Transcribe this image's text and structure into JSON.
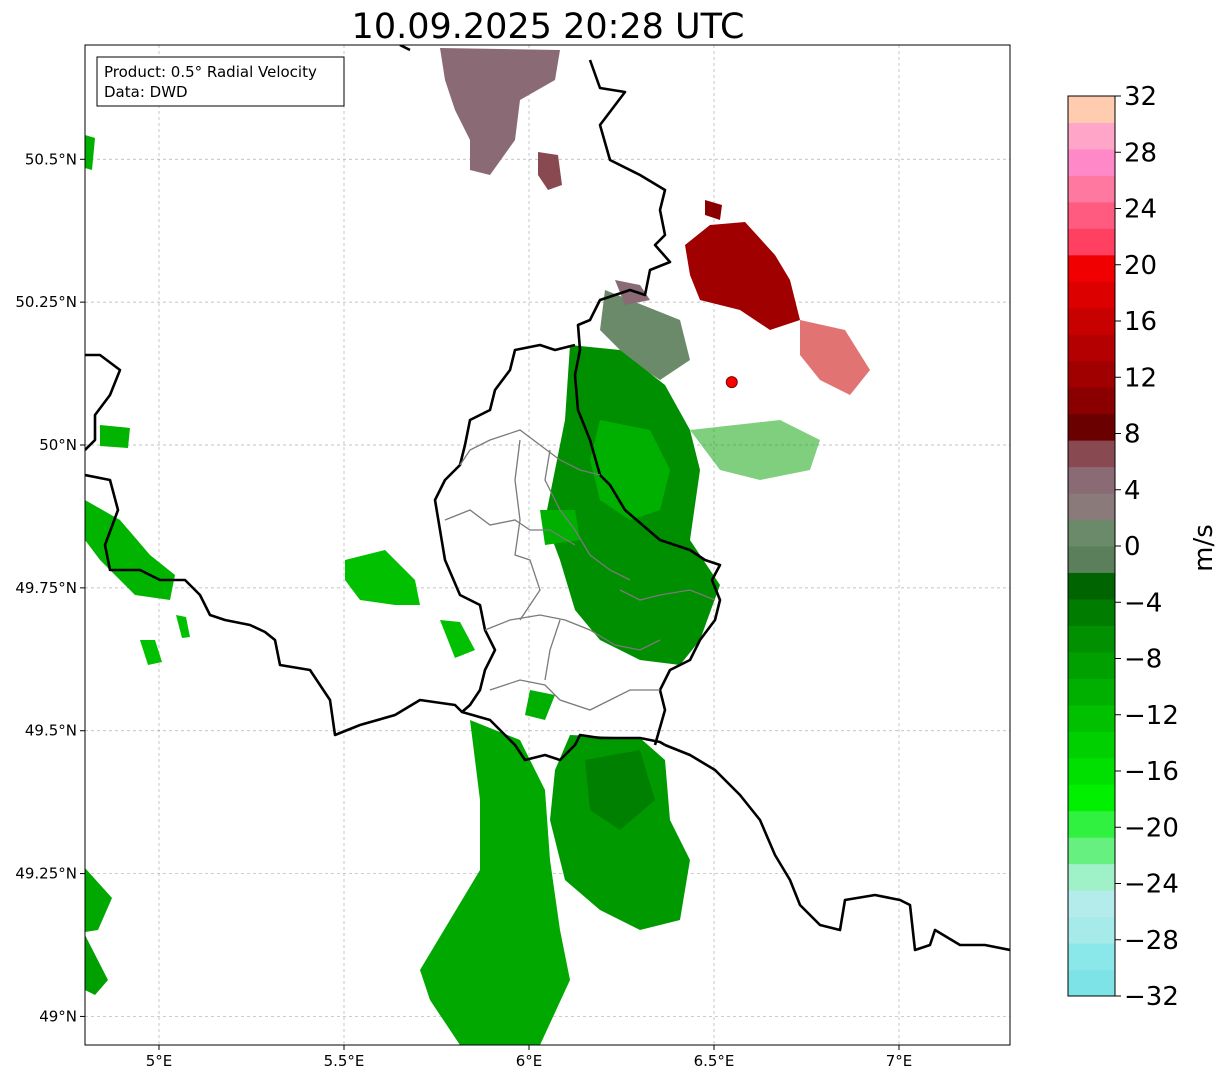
{
  "title": "10.09.2025 20:28 UTC",
  "info_box": {
    "line1": "Product: 0.5° Radial Velocity",
    "line2": "Data: DWD"
  },
  "map": {
    "lon_range": [
      4.8,
      7.3
    ],
    "lat_range": [
      48.95,
      50.7
    ],
    "x_ticks": [
      {
        "value": 5.0,
        "label": "5°E"
      },
      {
        "value": 5.5,
        "label": "5.5°E"
      },
      {
        "value": 6.0,
        "label": "6°E"
      },
      {
        "value": 6.5,
        "label": "6.5°E"
      },
      {
        "value": 7.0,
        "label": "7°E"
      }
    ],
    "y_ticks": [
      {
        "value": 50.5,
        "label": "50.5°N"
      },
      {
        "value": 50.25,
        "label": "50.25°N"
      },
      {
        "value": 50.0,
        "label": "50°N"
      },
      {
        "value": 49.75,
        "label": "49.75°N"
      },
      {
        "value": 49.5,
        "label": "49.5°N"
      },
      {
        "value": 49.25,
        "label": "49.25°N"
      },
      {
        "value": 49.0,
        "label": "49°N"
      }
    ],
    "radar_site": {
      "lon": 6.548,
      "lat": 50.11,
      "color": "#ff0000"
    },
    "grid": true
  },
  "colorbar": {
    "label": "m/s",
    "min": -32,
    "max": 32,
    "ticks": [
      32,
      28,
      24,
      20,
      16,
      12,
      8,
      4,
      0,
      -4,
      -8,
      -12,
      -16,
      -20,
      -24,
      -28,
      -32
    ],
    "tick_labels": [
      "32",
      "28",
      "24",
      "20",
      "16",
      "12",
      "8",
      "4",
      "0",
      "−4",
      "−8",
      "−12",
      "−16",
      "−20",
      "−24",
      "−28",
      "−32"
    ],
    "colors_bottom_to_top": [
      "#7de3e6",
      "#8ae8ea",
      "#a6eaea",
      "#b4ecec",
      "#a0f0c8",
      "#66f080",
      "#30f040",
      "#00f000",
      "#00e000",
      "#00d000",
      "#00c000",
      "#00b000",
      "#00a000",
      "#009000",
      "#007c00",
      "#006400",
      "#5b7e5b",
      "#6a8a6a",
      "#8a7a7a",
      "#8a6a74",
      "#884a50",
      "#6a0000",
      "#8a0000",
      "#a00000",
      "#b40000",
      "#c80000",
      "#dc0000",
      "#f00000",
      "#ff4060",
      "#ff5a80",
      "#ff78a0",
      "#ff88c8",
      "#ffa6c8",
      "#ffccb0"
    ]
  },
  "chart_data": {
    "type": "heatmap",
    "title": "10.09.2025 20:28 UTC",
    "xlabel": "",
    "ylabel": "",
    "value_label": "m/s",
    "value_range": [
      -32,
      32
    ],
    "regions": [
      {
        "lon": [
          5.83,
          6.05
        ],
        "lat": [
          50.45,
          50.7
        ],
        "velocity": 2
      },
      {
        "lon": [
          6.02,
          6.1
        ],
        "lat": [
          50.45,
          50.52
        ],
        "velocity": 6
      },
      {
        "lon": [
          6.4,
          6.75
        ],
        "lat": [
          50.2,
          50.4
        ],
        "velocity": 12
      },
      {
        "lon": [
          6.1,
          6.45
        ],
        "lat": [
          49.85,
          50.2
        ],
        "velocity": -10
      },
      {
        "lon": [
          6.1,
          6.45
        ],
        "lat": [
          49.55,
          49.85
        ],
        "velocity": -12
      },
      {
        "lon": [
          5.7,
          6.05
        ],
        "lat": [
          48.95,
          49.5
        ],
        "velocity": -14
      },
      {
        "lon": [
          6.05,
          6.42
        ],
        "lat": [
          49.2,
          49.5
        ],
        "velocity": -11
      },
      {
        "lon": [
          4.8,
          5.05
        ],
        "lat": [
          49.7,
          49.95
        ],
        "velocity": -14
      },
      {
        "lon": [
          4.8,
          4.9
        ],
        "lat": [
          49.0,
          49.25
        ],
        "velocity": -10
      }
    ]
  }
}
